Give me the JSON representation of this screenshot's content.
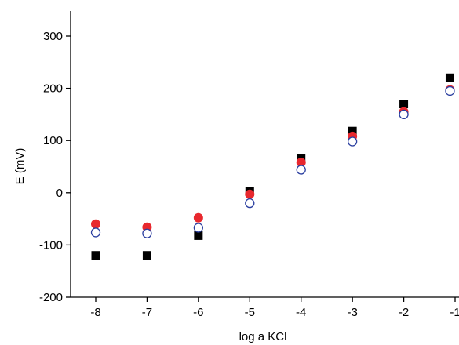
{
  "chart_data": {
    "type": "scatter",
    "title": "",
    "xlabel": "log a KCl",
    "ylabel": "E (mV)",
    "xlim": [
      -8.5,
      -1
    ],
    "ylim": [
      -200,
      350
    ],
    "xticks": [
      -8,
      -7,
      -6,
      -5,
      -4,
      -3,
      -2,
      -1
    ],
    "yticks": [
      -200,
      -100,
      0,
      100,
      200,
      300
    ],
    "grid": false,
    "legend": "none",
    "series": [
      {
        "marker": "filled-square",
        "color": "#000000",
        "points": [
          {
            "x": -8,
            "y": -120
          },
          {
            "x": -7,
            "y": -120
          },
          {
            "x": -6,
            "y": -82
          },
          {
            "x": -5,
            "y": 2
          },
          {
            "x": -4,
            "y": 65
          },
          {
            "x": -3,
            "y": 118
          },
          {
            "x": -2,
            "y": 170
          },
          {
            "x": -1.1,
            "y": 220
          }
        ]
      },
      {
        "marker": "filled-circle",
        "color": "#e8282e",
        "points": [
          {
            "x": -8,
            "y": -60
          },
          {
            "x": -7,
            "y": -66
          },
          {
            "x": -6,
            "y": -48
          },
          {
            "x": -5,
            "y": -3
          },
          {
            "x": -4,
            "y": 58
          },
          {
            "x": -3,
            "y": 108
          },
          {
            "x": -2,
            "y": 155
          },
          {
            "x": -1.1,
            "y": 197
          }
        ]
      },
      {
        "marker": "open-circle",
        "color": "#2b3fa0",
        "points": [
          {
            "x": -8,
            "y": -76
          },
          {
            "x": -7,
            "y": -78
          },
          {
            "x": -6,
            "y": -67
          },
          {
            "x": -5,
            "y": -20
          },
          {
            "x": -4,
            "y": 44
          },
          {
            "x": -3,
            "y": 98
          },
          {
            "x": -2,
            "y": 150
          },
          {
            "x": -1.1,
            "y": 195
          }
        ]
      }
    ]
  }
}
